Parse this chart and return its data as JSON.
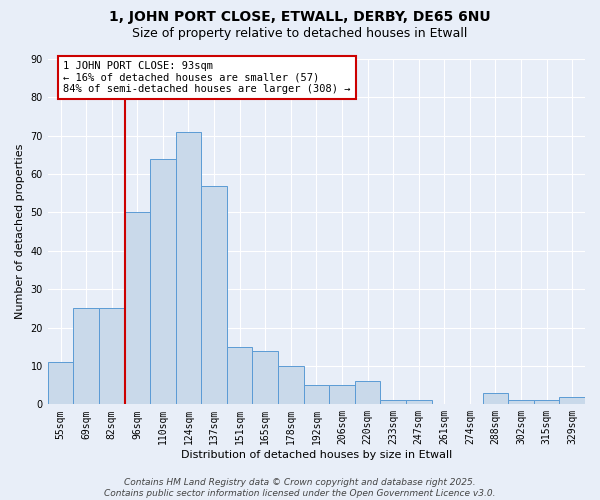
{
  "title": "1, JOHN PORT CLOSE, ETWALL, DERBY, DE65 6NU",
  "subtitle": "Size of property relative to detached houses in Etwall",
  "xlabel": "Distribution of detached houses by size in Etwall",
  "ylabel": "Number of detached properties",
  "categories": [
    "55sqm",
    "69sqm",
    "82sqm",
    "96sqm",
    "110sqm",
    "124sqm",
    "137sqm",
    "151sqm",
    "165sqm",
    "178sqm",
    "192sqm",
    "206sqm",
    "220sqm",
    "233sqm",
    "247sqm",
    "261sqm",
    "274sqm",
    "288sqm",
    "302sqm",
    "315sqm",
    "329sqm"
  ],
  "values": [
    11,
    25,
    25,
    50,
    64,
    71,
    57,
    15,
    14,
    10,
    5,
    5,
    6,
    1,
    1,
    0,
    0,
    3,
    1,
    1,
    2
  ],
  "bar_color": "#c9d9ea",
  "bar_edge_color": "#5b9bd5",
  "background_color": "#e8eef8",
  "grid_color": "#ffffff",
  "vline_x_index": 3,
  "vline_color": "#cc0000",
  "annotation_text": "1 JOHN PORT CLOSE: 93sqm\n← 16% of detached houses are smaller (57)\n84% of semi-detached houses are larger (308) →",
  "annotation_box_color": "#ffffff",
  "annotation_box_edge": "#cc0000",
  "ylim": [
    0,
    90
  ],
  "yticks": [
    0,
    10,
    20,
    30,
    40,
    50,
    60,
    70,
    80,
    90
  ],
  "footer": "Contains HM Land Registry data © Crown copyright and database right 2025.\nContains public sector information licensed under the Open Government Licence v3.0.",
  "title_fontsize": 10,
  "subtitle_fontsize": 9,
  "axis_label_fontsize": 8,
  "tick_fontsize": 7,
  "annotation_fontsize": 7.5,
  "footer_fontsize": 6.5
}
